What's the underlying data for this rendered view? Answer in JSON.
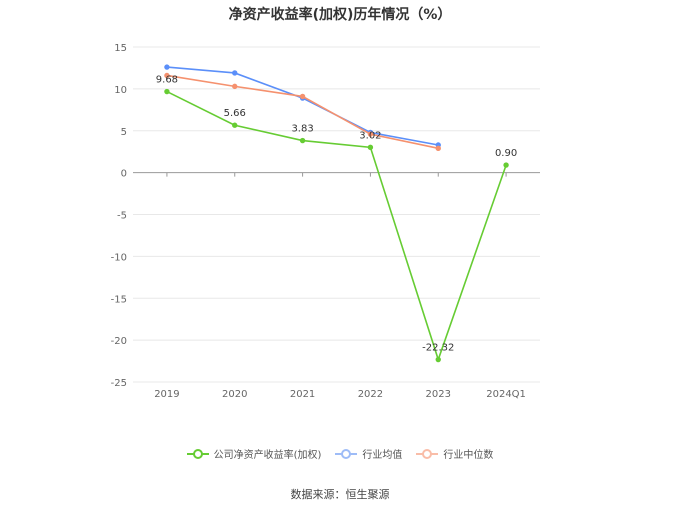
{
  "title": "净资产收益率(加权)历年情况（%）",
  "source_text": "数据来源：恒生聚源",
  "colors": {
    "company": "#66cc33",
    "avg": "#5b8ff9",
    "median": "#f5916e",
    "grid": "#e8e8e8",
    "axis": "#666666"
  },
  "legend": [
    {
      "label": "公司净资产收益率(加权)",
      "color": "#66cc33"
    },
    {
      "label": "行业均值",
      "color": "#5b8ff9"
    },
    {
      "label": "行业中位数",
      "color": "#f5916e"
    }
  ],
  "chart_data": {
    "type": "line",
    "title": "净资产收益率(加权)历年情况（%）",
    "categories": [
      "2019",
      "2020",
      "2021",
      "2022",
      "2023",
      "2024Q1"
    ],
    "ylim": [
      -25,
      15
    ],
    "yticks": [
      15,
      10,
      5,
      0,
      -5,
      -10,
      -15,
      -20,
      -25
    ],
    "grid": true,
    "legend_position": "bottom",
    "series": [
      {
        "name": "公司净资产收益率(加权)",
        "values": [
          9.68,
          5.66,
          3.83,
          3.02,
          -22.32,
          0.9
        ],
        "labels": [
          "9.68",
          "5.66",
          "3.83",
          "3.02",
          "-22.32",
          "0.90"
        ]
      },
      {
        "name": "行业均值",
        "values": [
          12.6,
          11.9,
          8.9,
          4.8,
          3.3,
          null
        ]
      },
      {
        "name": "行业中位数",
        "values": [
          11.6,
          10.3,
          9.1,
          4.6,
          2.9,
          null
        ]
      }
    ]
  }
}
